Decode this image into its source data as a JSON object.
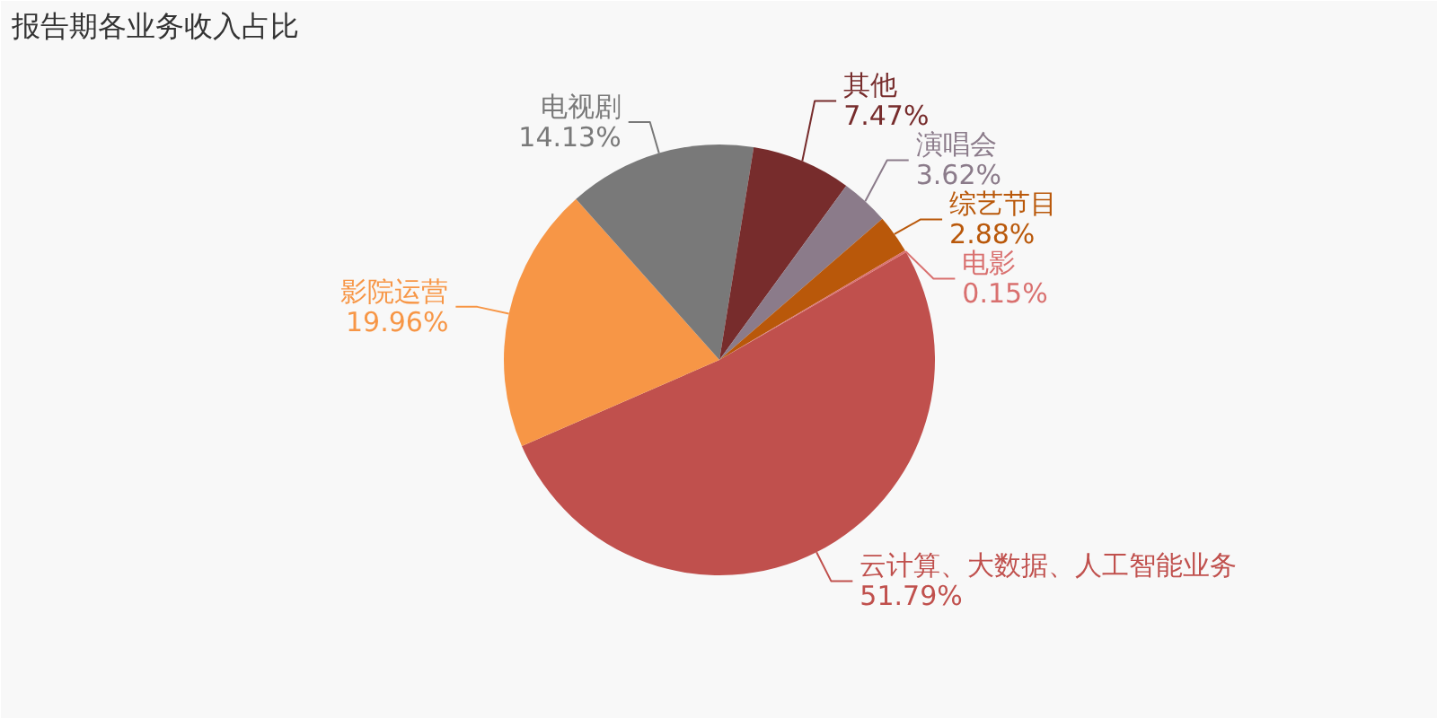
{
  "chart_data": {
    "type": "pie",
    "title": "报告期各业务收入占比",
    "categories": [
      "云计算、大数据、人工智能业务",
      "影院运营",
      "电视剧",
      "其他",
      "演唱会",
      "综艺节目",
      "电影"
    ],
    "values": [
      51.79,
      19.96,
      14.13,
      7.47,
      3.62,
      2.88,
      0.15
    ],
    "colors": [
      "#c0504d",
      "#f79646",
      "#797979",
      "#772c2c",
      "#8b7b8a",
      "#b9580a",
      "#d9706f"
    ],
    "value_labels": [
      "51.79%",
      "19.96%",
      "14.13%",
      "7.47%",
      "3.62%",
      "2.88%",
      "0.15%"
    ]
  }
}
